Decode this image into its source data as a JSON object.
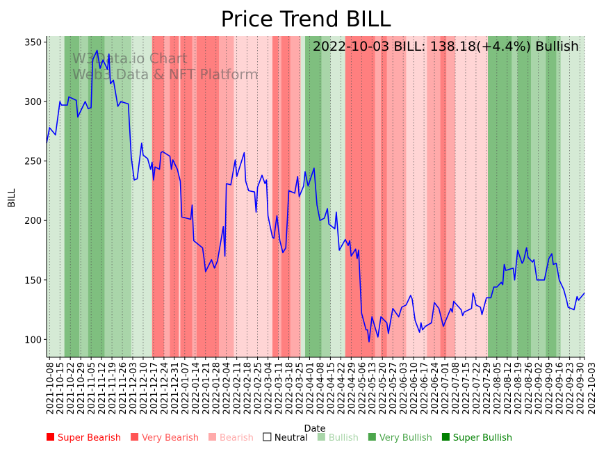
{
  "chart_data": {
    "type": "line",
    "title": "Price Trend BILL",
    "annotation": "2022-10-03 BILL: 138.18(+4.4%) Bullish",
    "watermark": [
      "W3Data.io Chart",
      "Web3 Data & NFT Platform"
    ],
    "xlabel": "Date",
    "ylabel": "BILL",
    "x_origin": "2021-10-08",
    "x_unit": "days since x_origin",
    "xlim": [
      -2,
      360
    ],
    "ylim": [
      85,
      355
    ],
    "yticks": [
      100,
      150,
      200,
      250,
      300,
      350
    ],
    "grid": "vertical dotted at x ticks",
    "legend_position": "bottom-left",
    "xtick_labels": [
      "2021-10-08",
      "2021-10-15",
      "2021-10-22",
      "2021-10-29",
      "2021-11-05",
      "2021-11-12",
      "2021-11-19",
      "2021-11-26",
      "2021-12-03",
      "2021-12-10",
      "2021-12-17",
      "2021-12-24",
      "2021-12-31",
      "2022-01-07",
      "2022-01-14",
      "2022-01-21",
      "2022-01-28",
      "2022-02-04",
      "2022-02-11",
      "2022-02-18",
      "2022-02-25",
      "2022-03-04",
      "2022-03-11",
      "2022-03-18",
      "2022-03-25",
      "2022-04-01",
      "2022-04-08",
      "2022-04-15",
      "2022-04-22",
      "2022-04-29",
      "2022-05-06",
      "2022-05-13",
      "2022-05-20",
      "2022-05-27",
      "2022-06-03",
      "2022-06-10",
      "2022-06-17",
      "2022-06-24",
      "2022-07-01",
      "2022-07-08",
      "2022-07-15",
      "2022-07-22",
      "2022-07-29",
      "2022-08-05",
      "2022-08-12",
      "2022-08-19",
      "2022-08-26",
      "2022-09-02",
      "2022-09-09",
      "2022-09-16",
      "2022-09-23",
      "2022-09-30",
      "2022-10-03"
    ],
    "xtick_days": [
      0,
      7,
      14,
      21,
      28,
      35,
      42,
      49,
      56,
      63,
      70,
      77,
      84,
      91,
      98,
      105,
      112,
      119,
      126,
      133,
      140,
      147,
      154,
      161,
      168,
      175,
      182,
      189,
      196,
      203,
      210,
      217,
      224,
      231,
      238,
      245,
      252,
      259,
      266,
      273,
      280,
      287,
      294,
      301,
      308,
      315,
      322,
      329,
      336,
      343,
      350,
      357,
      360
    ],
    "legend": [
      {
        "label": "Super Bearish",
        "color": "#ff0000"
      },
      {
        "label": "Very Bearish",
        "color": "#ff5555"
      },
      {
        "label": "Bearish",
        "color": "#ffaaaa"
      },
      {
        "label": "Neutral",
        "color": "none"
      },
      {
        "label": "Bullish",
        "color": "#a8d5a8"
      },
      {
        "label": "Very Bullish",
        "color": "#4ca64c"
      },
      {
        "label": "Super Bullish",
        "color": "#008000"
      }
    ],
    "band_colors": {
      "super_bear": "#ff7f7f",
      "very_bear": "#ffaaaa",
      "bearish": "#ffd5d5",
      "bullish": "#d5ead5",
      "very_bull": "#a9d5a9",
      "super_bull": "#7fbf7f"
    },
    "bands": [
      [
        -2,
        10,
        "bullish"
      ],
      [
        10,
        20,
        "super_bull"
      ],
      [
        20,
        26,
        "very_bull"
      ],
      [
        26,
        37,
        "super_bull"
      ],
      [
        37,
        55,
        "very_bull"
      ],
      [
        55,
        69,
        "bullish"
      ],
      [
        69,
        77,
        "super_bear"
      ],
      [
        77,
        81,
        "very_bear"
      ],
      [
        81,
        87,
        "super_bear"
      ],
      [
        87,
        88,
        "bearish"
      ],
      [
        88,
        96,
        "super_bear"
      ],
      [
        96,
        99,
        "very_bear"
      ],
      [
        99,
        114,
        "super_bear"
      ],
      [
        114,
        124,
        "very_bear"
      ],
      [
        124,
        150,
        "bearish"
      ],
      [
        150,
        154,
        "super_bear"
      ],
      [
        154,
        156,
        "very_bear"
      ],
      [
        156,
        162,
        "super_bear"
      ],
      [
        162,
        169,
        "very_bear"
      ],
      [
        169,
        172,
        "bullish"
      ],
      [
        172,
        183,
        "super_bull"
      ],
      [
        183,
        189,
        "very_bull"
      ],
      [
        189,
        199,
        "bullish"
      ],
      [
        199,
        219,
        "super_bear"
      ],
      [
        219,
        223,
        "very_bear"
      ],
      [
        223,
        227,
        "super_bear"
      ],
      [
        227,
        240,
        "very_bear"
      ],
      [
        240,
        254,
        "bearish"
      ],
      [
        254,
        263,
        "very_bear"
      ],
      [
        263,
        267,
        "super_bear"
      ],
      [
        267,
        273,
        "very_bear"
      ],
      [
        273,
        295,
        "bearish"
      ],
      [
        295,
        311,
        "super_bull"
      ],
      [
        311,
        315,
        "very_bull"
      ],
      [
        315,
        324,
        "super_bull"
      ],
      [
        324,
        334,
        "very_bull"
      ],
      [
        334,
        341,
        "super_bull"
      ],
      [
        341,
        344,
        "very_bull"
      ],
      [
        344,
        360,
        "bullish"
      ]
    ],
    "series": [
      {
        "name": "BILL",
        "color": "#0000ff",
        "x": [
          -2,
          0,
          4,
          7,
          8,
          12,
          13,
          18,
          19,
          24,
          26,
          28,
          29,
          32,
          34,
          36,
          39,
          40,
          41,
          43,
          46,
          48,
          53,
          55,
          57,
          59,
          62,
          63,
          66,
          68,
          69,
          70,
          71,
          74,
          75,
          76,
          81,
          82,
          83,
          86,
          88,
          89,
          95,
          96,
          97,
          103,
          104,
          105,
          109,
          111,
          113,
          117,
          118,
          119,
          122,
          125,
          126,
          131,
          132,
          134,
          138,
          139,
          140,
          143,
          145,
          146,
          147,
          150,
          151,
          153,
          155,
          157,
          159,
          160,
          161,
          165,
          167,
          168,
          171,
          172,
          174,
          178,
          180,
          182,
          185,
          187,
          188,
          192,
          193,
          195,
          199,
          201,
          202,
          203,
          206,
          207,
          208,
          210,
          213,
          214,
          215,
          217,
          221,
          223,
          227,
          228,
          231,
          235,
          237,
          240,
          243,
          244,
          246,
          249,
          250,
          251,
          253,
          257,
          259,
          262,
          265,
          270,
          271,
          272,
          277,
          278,
          279,
          284,
          285,
          286,
          287,
          290,
          291,
          294,
          297,
          299,
          301,
          304,
          305,
          306,
          307,
          312,
          313,
          315,
          318,
          319,
          321,
          322,
          325,
          326,
          328,
          333,
          336,
          338,
          339,
          341,
          343,
          346,
          348,
          349,
          353,
          355,
          356,
          360
        ],
        "y": [
          265,
          278,
          272,
          300,
          297,
          297,
          304,
          301,
          287,
          300,
          294,
          295,
          335,
          343,
          328,
          335,
          327,
          340,
          315,
          318,
          296,
          300,
          298,
          253,
          234,
          235,
          265,
          255,
          252,
          243,
          249,
          234,
          245,
          243,
          257,
          258,
          254,
          243,
          251,
          243,
          233,
          203,
          201,
          213,
          183,
          177,
          168,
          157,
          167,
          160,
          166,
          195,
          170,
          231,
          230,
          251,
          237,
          257,
          233,
          225,
          224,
          207,
          228,
          238,
          231,
          234,
          204,
          186,
          185,
          204,
          183,
          173,
          177,
          200,
          225,
          223,
          237,
          220,
          229,
          241,
          229,
          244,
          213,
          200,
          202,
          210,
          197,
          193,
          207,
          175,
          184,
          179,
          183,
          170,
          176,
          168,
          175,
          122,
          108,
          108,
          98,
          119,
          102,
          119,
          114,
          105,
          126,
          119,
          127,
          129,
          137,
          134,
          116,
          106,
          114,
          108,
          111,
          114,
          131,
          126,
          111,
          126,
          123,
          132,
          125,
          120,
          123,
          126,
          139,
          135,
          129,
          127,
          121,
          135,
          135,
          144,
          144,
          148,
          146,
          163,
          158,
          160,
          150,
          175,
          164,
          166,
          177,
          169,
          165,
          167,
          150,
          150,
          168,
          172,
          163,
          164,
          150,
          142,
          133,
          127,
          125,
          136,
          133,
          139
        ]
      }
    ]
  }
}
